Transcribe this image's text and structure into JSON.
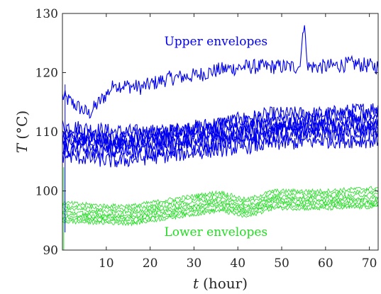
{
  "chart_data": {
    "type": "line",
    "title": "",
    "xlabel": "t (hour)",
    "xlabel_var": "t",
    "xlabel_unit": "(hour)",
    "ylabel": "T (°C)",
    "ylabel_var": "T",
    "ylabel_unit": "(°C)",
    "xlim": [
      0,
      72
    ],
    "ylim": [
      90,
      130
    ],
    "xticks": [
      10,
      20,
      30,
      40,
      50,
      60,
      70
    ],
    "yticks": [
      90,
      100,
      110,
      120,
      130
    ],
    "grid": false,
    "annotations": [
      {
        "text": "Upper envelopes",
        "x": 35,
        "y": 124.6,
        "color": "#0000ee"
      },
      {
        "text": "Lower envelopes",
        "x": 35,
        "y": 92.4,
        "color": "#22dd22"
      }
    ],
    "colors": {
      "upper": "#0000ee",
      "lower": "#22dd22",
      "axis": "#262626"
    },
    "series": [
      {
        "group": "upper",
        "x": [
          0,
          6,
          12,
          18,
          24,
          30,
          36,
          42,
          48,
          54,
          55.2,
          56,
          60,
          66,
          72
        ],
        "values": [
          116,
          113,
          118,
          117.5,
          119,
          119.5,
          120.5,
          121,
          121,
          121,
          128,
          121,
          121,
          121.5,
          121
        ]
      },
      {
        "group": "upper",
        "x": [
          0,
          12,
          24,
          36,
          48,
          60,
          72
        ],
        "values": [
          111,
          110,
          110,
          111.5,
          113,
          113,
          114
        ]
      },
      {
        "group": "upper",
        "x": [
          0,
          12,
          24,
          36,
          48,
          60,
          72
        ],
        "values": [
          110,
          109,
          110,
          111,
          112,
          112.5,
          113
        ]
      },
      {
        "group": "upper",
        "x": [
          0,
          12,
          24,
          36,
          48,
          60,
          72
        ],
        "values": [
          109,
          108.5,
          109.5,
          110.5,
          111,
          111.5,
          112
        ]
      },
      {
        "group": "upper",
        "x": [
          0,
          12,
          24,
          36,
          48,
          60,
          72
        ],
        "values": [
          108.5,
          108,
          108.5,
          109.5,
          110.5,
          111,
          111
        ]
      },
      {
        "group": "upper",
        "x": [
          0,
          12,
          24,
          36,
          48,
          60,
          72
        ],
        "values": [
          108,
          107.5,
          108,
          109,
          110,
          110.5,
          110.5
        ]
      },
      {
        "group": "upper",
        "x": [
          0,
          12,
          24,
          36,
          48,
          60,
          72
        ],
        "values": [
          107,
          106.5,
          107,
          108,
          109,
          109.5,
          110
        ]
      },
      {
        "group": "upper",
        "x": [
          0,
          12,
          24,
          36,
          48,
          60,
          72
        ],
        "values": [
          106,
          105,
          106,
          107,
          108,
          108.5,
          108.5
        ]
      },
      {
        "group": "lower",
        "x": [
          0,
          10,
          16,
          24,
          36,
          42,
          48,
          60,
          66,
          72
        ],
        "values": [
          98,
          97.5,
          97.5,
          98.5,
          99.8,
          98.5,
          100,
          100,
          100.3,
          100.5
        ]
      },
      {
        "group": "lower",
        "x": [
          0,
          10,
          16,
          24,
          36,
          42,
          48,
          60,
          66,
          72
        ],
        "values": [
          97.5,
          97,
          97,
          98,
          99.3,
          98,
          99.5,
          99.5,
          99.8,
          100
        ]
      },
      {
        "group": "lower",
        "x": [
          0,
          10,
          16,
          24,
          36,
          42,
          48,
          60,
          66,
          72
        ],
        "values": [
          97,
          96.5,
          96.5,
          97.5,
          98.8,
          97.5,
          99,
          99,
          99.2,
          99.5
        ]
      },
      {
        "group": "lower",
        "x": [
          0,
          10,
          16,
          24,
          36,
          42,
          48,
          60,
          66,
          72
        ],
        "values": [
          96.5,
          96,
          96,
          97,
          98.3,
          97,
          98.7,
          98.6,
          98.8,
          99
        ]
      },
      {
        "group": "lower",
        "x": [
          0,
          10,
          16,
          24,
          36,
          42,
          48,
          60,
          66,
          72
        ],
        "values": [
          96,
          95.7,
          95.6,
          96.6,
          97.9,
          96.7,
          98.2,
          98.2,
          98.4,
          98.5
        ]
      },
      {
        "group": "lower",
        "x": [
          0,
          10,
          16,
          24,
          36,
          42,
          48,
          60,
          66,
          72
        ],
        "values": [
          95.6,
          95.3,
          95.2,
          96.2,
          97.5,
          96.4,
          97.9,
          97.8,
          98,
          98
        ]
      },
      {
        "group": "lower",
        "x": [
          0,
          10,
          16,
          24,
          36,
          42,
          48,
          60,
          66,
          72
        ],
        "values": [
          95.2,
          95,
          94.8,
          95.8,
          97.1,
          96,
          97.5,
          97.4,
          97.6,
          97.6
        ]
      },
      {
        "group": "lower",
        "x": [
          0,
          10,
          16,
          24,
          36,
          42,
          48,
          60,
          66,
          72
        ],
        "values": [
          94.8,
          94.6,
          94.5,
          95.4,
          96.7,
          95.6,
          97.1,
          97,
          97.2,
          97.3
        ]
      }
    ]
  }
}
